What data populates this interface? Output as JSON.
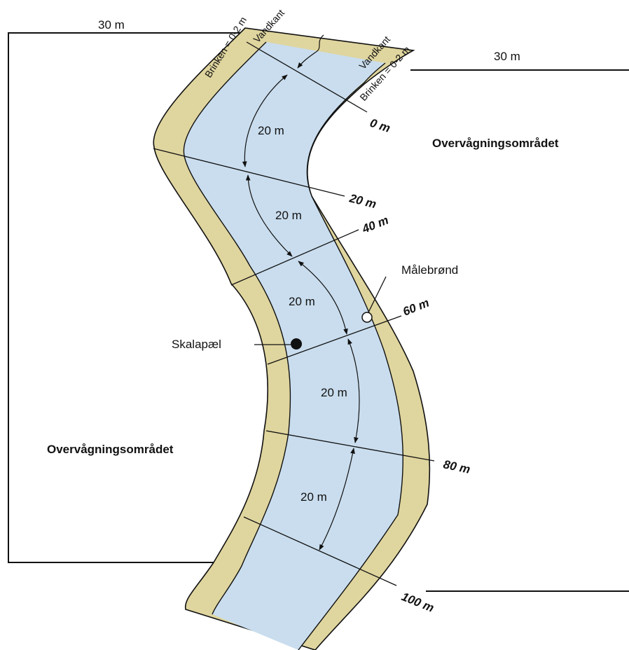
{
  "buffer": {
    "left_width": "30 m",
    "right_width": "30 m",
    "left_area": "Overvågningsområdet",
    "right_area": "Overvågningsområdet"
  },
  "bank": {
    "left_label": "Brinken = 0-2 m",
    "right_label": "Brinken = 0-2 m",
    "left_water_edge": "Vandkant",
    "right_water_edge": "Vandkant"
  },
  "stations": [
    "0 m",
    "20 m",
    "40 m",
    "60 m",
    "80 m",
    "100 m"
  ],
  "intervals": [
    "20 m",
    "20 m",
    "20 m",
    "20 m",
    "20 m"
  ],
  "features": {
    "well": "Målebrønd",
    "gauge": "Skalapæl"
  }
}
